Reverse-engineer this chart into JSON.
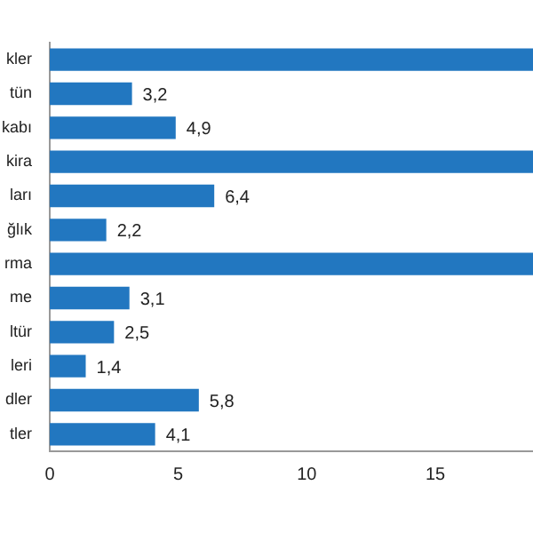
{
  "chart_data": {
    "type": "bar",
    "orientation": "horizontal",
    "categories": [
      "kler",
      "tün",
      "kabı",
      "kira",
      "ları",
      "ğlık",
      "rma",
      "me",
      "ltür",
      "leri",
      "dler",
      "tler"
    ],
    "values": [
      18.8,
      3.2,
      4.9,
      18.8,
      6.4,
      2.2,
      18.8,
      3.1,
      2.5,
      1.4,
      5.8,
      4.1
    ],
    "value_labels": [
      null,
      "3,2",
      "4,9",
      null,
      "6,4",
      "2,2",
      null,
      "3,1",
      "2,5",
      "1,4",
      "5,8",
      "4,1"
    ],
    "color": "#2277c0",
    "xlim": [
      0,
      18.8
    ],
    "xticks": [
      0,
      5,
      10,
      15
    ],
    "grid": false,
    "legend": false
  }
}
